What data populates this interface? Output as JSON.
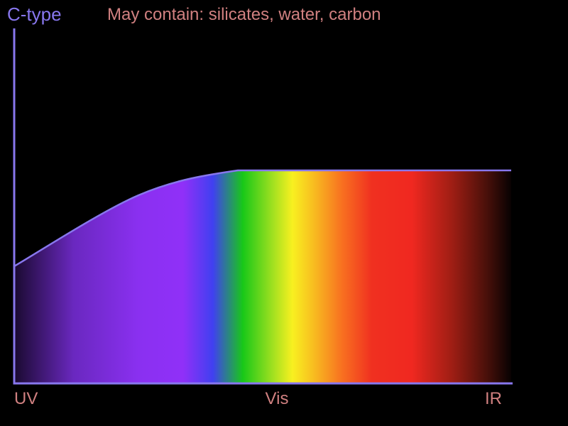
{
  "colors": {
    "background": "#000000",
    "axis": "#8877ee",
    "title": "#8877ee",
    "subtitle": "#d08080",
    "tick_label": "#d08080"
  },
  "chart_data": {
    "type": "area",
    "title": "C-type",
    "subtitle": "May contain: silicates, water, carbon",
    "categories": [
      "UV",
      "Vis",
      "IR"
    ],
    "x": [
      0,
      0.25,
      0.45,
      0.6,
      0.8,
      1.0
    ],
    "values": [
      0.33,
      0.53,
      0.6,
      0.6,
      0.6,
      0.6
    ],
    "ylim": [
      0,
      1
    ],
    "xlabel": "",
    "ylabel": "",
    "grid": false,
    "fill": "spectrum"
  }
}
